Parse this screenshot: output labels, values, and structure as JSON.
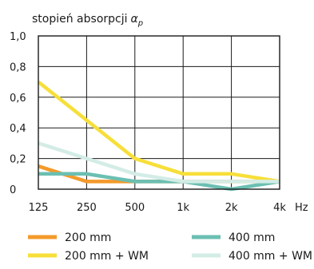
{
  "chart_data": {
    "type": "line",
    "title": "",
    "ylabel": "stopień absorpcji",
    "ylabel_symbol": "α",
    "ylabel_subscript": "p",
    "xlabel": "Hz",
    "categories": [
      "125",
      "250",
      "500",
      "1k",
      "2k",
      "4k"
    ],
    "y_ticks": [
      "0",
      "0,2",
      "0,4",
      "0,6",
      "0,8",
      "1,0"
    ],
    "y_tick_values": [
      0,
      0.2,
      0.4,
      0.6,
      0.8,
      1.0
    ],
    "ylim": [
      0,
      1.0
    ],
    "grid": true,
    "legend_position": "bottom",
    "series": [
      {
        "name": "200 mm",
        "color": "#f39a2b",
        "values": [
          0.15,
          0.05,
          0.05,
          0.05,
          0.05,
          0.05
        ]
      },
      {
        "name": "400 mm",
        "color": "#6bbfb2",
        "values": [
          0.1,
          0.1,
          0.05,
          0.05,
          0.0,
          0.05
        ]
      },
      {
        "name": "200 mm + WM",
        "color": "#f7df3a",
        "values": [
          0.7,
          0.45,
          0.2,
          0.1,
          0.1,
          0.05
        ]
      },
      {
        "name": "400 mm + WM",
        "color": "#d3ece6",
        "values": [
          0.3,
          0.2,
          0.1,
          0.05,
          0.05,
          0.05
        ]
      }
    ]
  }
}
